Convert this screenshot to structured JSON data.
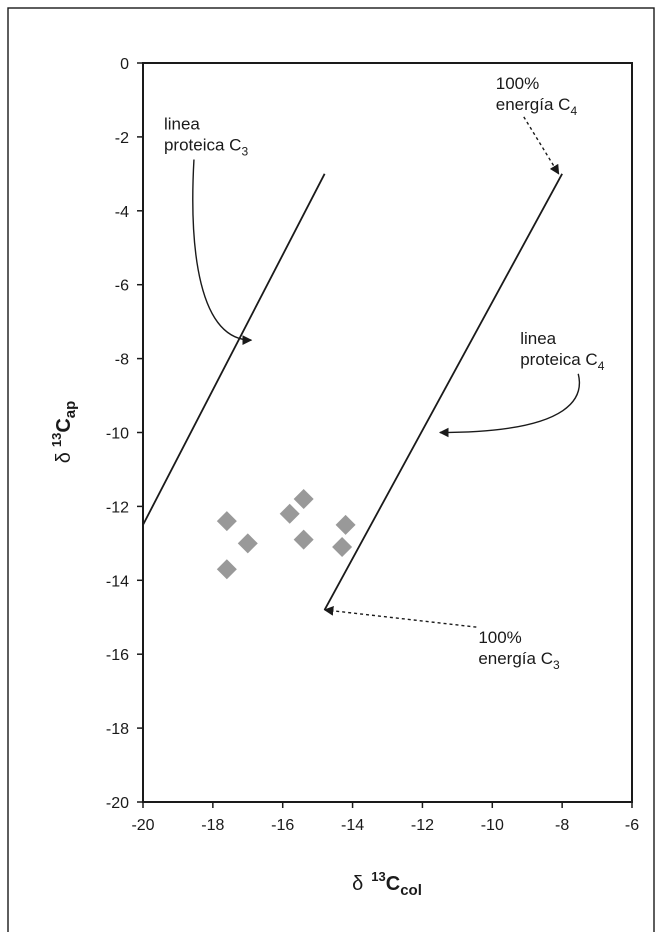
{
  "chart_data": {
    "type": "scatter",
    "title": "",
    "xlabel": {
      "prefix": "δ",
      "sup": "13",
      "main": "C",
      "sub": "col"
    },
    "ylabel": {
      "prefix": "δ",
      "sup": "13",
      "main": "C",
      "sub": "ap"
    },
    "xlim": [
      -20,
      -6
    ],
    "ylim": [
      -20,
      0
    ],
    "xticks": [
      -20,
      -18,
      -16,
      -14,
      -12,
      -10,
      -8,
      -6
    ],
    "yticks": [
      0,
      -2,
      -4,
      -6,
      -8,
      -10,
      -12,
      -14,
      -16,
      -18,
      -20
    ],
    "grid": false,
    "points": [
      {
        "x": -17.6,
        "y": -12.4
      },
      {
        "x": -17.0,
        "y": -13.0
      },
      {
        "x": -17.6,
        "y": -13.7
      },
      {
        "x": -15.8,
        "y": -12.2
      },
      {
        "x": -15.4,
        "y": -11.8
      },
      {
        "x": -15.4,
        "y": -12.9
      },
      {
        "x": -14.2,
        "y": -12.5
      },
      {
        "x": -14.3,
        "y": -13.1
      }
    ],
    "marker_color": "#999999",
    "lines": [
      {
        "name": "c3-protein-line",
        "x": [
          -20.0,
          -14.8
        ],
        "y": [
          -12.5,
          -3.0
        ]
      },
      {
        "name": "c4-protein-line",
        "x": [
          -14.8,
          -8.0
        ],
        "y": [
          -14.8,
          -3.0
        ]
      }
    ],
    "annotations": [
      {
        "name": "c3-protein",
        "lines": [
          "linea",
          "proteica C"
        ],
        "sub": "3",
        "text_at": [
          -19.4,
          -1.8
        ],
        "arrow_to": [
          -16.9,
          -7.5
        ],
        "style": "solid"
      },
      {
        "name": "c4-protein",
        "lines": [
          "linea",
          "proteica C"
        ],
        "sub": "4",
        "text_at": [
          -9.2,
          -7.6
        ],
        "arrow_to": [
          -11.5,
          -10.0
        ],
        "style": "solid"
      },
      {
        "name": "c4-energy",
        "lines": [
          "100%",
          "energía C"
        ],
        "sub": "4",
        "text_at": [
          -9.9,
          -0.7
        ],
        "arrow_to": [
          -8.1,
          -3.0
        ],
        "style": "dashed"
      },
      {
        "name": "c3-energy",
        "lines": [
          "100%",
          "energía C"
        ],
        "sub": "3",
        "text_at": [
          -10.4,
          -15.7
        ],
        "arrow_to": [
          -14.8,
          -14.8
        ],
        "style": "dashed"
      }
    ]
  }
}
